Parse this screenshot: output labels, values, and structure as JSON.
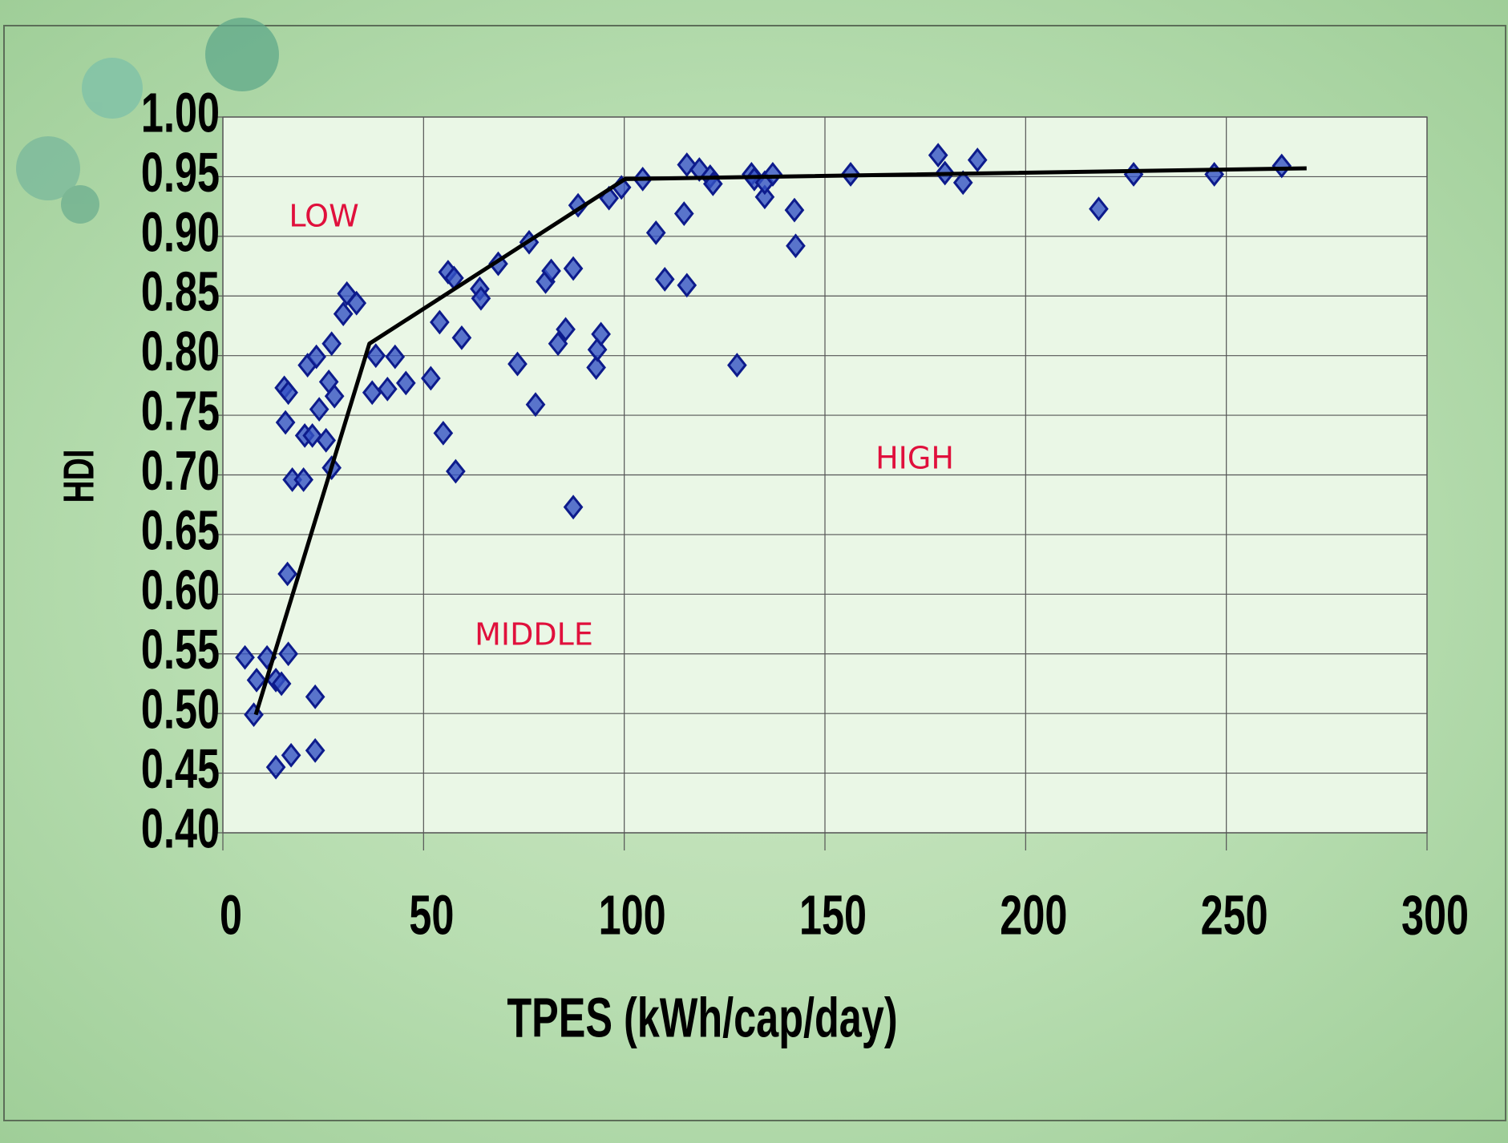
{
  "chart_data": {
    "type": "scatter",
    "x_label": "TPES (kWh/cap/day)",
    "y_label": "HDI",
    "annotations": [
      "LOW",
      "MIDDLE",
      "HIGH"
    ],
    "xlim": [
      0,
      300
    ],
    "xticks": [
      0,
      50,
      100,
      150,
      200,
      250,
      300
    ],
    "ylim": [
      0.4,
      1.0
    ],
    "yticks": [
      {
        "value": 0.4,
        "label": "0.40"
      },
      0.45,
      {
        "value": 0.5,
        "label": "0.50"
      },
      0.55,
      {
        "value": 0.6,
        "label": "0.60"
      },
      0.65,
      {
        "value": 0.7,
        "label": "0.70"
      },
      0.75,
      {
        "value": 0.8,
        "label": "0.80"
      },
      0.85,
      {
        "value": 0.9,
        "label": "0.90"
      },
      0.95,
      {
        "value": 1.0,
        "label": "1.00"
      }
    ],
    "grid": true,
    "series": [
      {
        "style": "diamond",
        "color": "#3553c4",
        "x": [
          5.5,
          8.4,
          7.7,
          11.0,
          13.2,
          14.6,
          13.2,
          17.0,
          23.0,
          23.0,
          16.3,
          16.1,
          15.6,
          15.3,
          16.3,
          17.3,
          20.1,
          20.4,
          22.3,
          25.7,
          27.1,
          24.0,
          27.8,
          26.4,
          21.1,
          23.3,
          27.1,
          30.0,
          30.9,
          33.3,
          37.2,
          38.1,
          41.0,
          42.9,
          45.6,
          51.8,
          54.0,
          54.9,
          58.0,
          56.1,
          57.6,
          59.5,
          64.0,
          64.3,
          68.6,
          73.4,
          76.3,
          77.9,
          80.4,
          81.8,
          83.5,
          85.4,
          87.3,
          87.3,
          88.5,
          93.0,
          93.3,
          94.2,
          96.2,
          99.3,
          104.6,
          107.9,
          110.1,
          114.9,
          115.6,
          115.6,
          118.7,
          121.4,
          122.1,
          128.1,
          131.7,
          132.4,
          135.0,
          135.0,
          137.0,
          142.4,
          142.7,
          156.4,
          178.2,
          179.9,
          184.4,
          188.0,
          218.2,
          226.9,
          247.0,
          263.8
        ],
        "values": [
          0.547,
          0.528,
          0.499,
          0.547,
          0.528,
          0.525,
          0.455,
          0.465,
          0.469,
          0.514,
          0.55,
          0.617,
          0.744,
          0.773,
          0.769,
          0.696,
          0.696,
          0.733,
          0.733,
          0.729,
          0.706,
          0.755,
          0.766,
          0.778,
          0.792,
          0.799,
          0.81,
          0.835,
          0.852,
          0.844,
          0.769,
          0.8,
          0.772,
          0.799,
          0.777,
          0.781,
          0.828,
          0.735,
          0.703,
          0.87,
          0.865,
          0.815,
          0.856,
          0.848,
          0.877,
          0.793,
          0.895,
          0.759,
          0.862,
          0.871,
          0.81,
          0.822,
          0.873,
          0.673,
          0.926,
          0.79,
          0.805,
          0.818,
          0.932,
          0.941,
          0.948,
          0.903,
          0.864,
          0.919,
          0.96,
          0.859,
          0.956,
          0.95,
          0.944,
          0.792,
          0.952,
          0.948,
          0.933,
          0.945,
          0.952,
          0.922,
          0.892,
          0.952,
          0.968,
          0.953,
          0.945,
          0.964,
          0.923,
          0.952,
          0.952,
          0.959
        ]
      },
      {
        "style": "line",
        "color": "#000000",
        "x": [
          8.2,
          36.5,
          100.2,
          270.0
        ],
        "values": [
          0.499,
          0.81,
          0.948,
          0.957
        ]
      }
    ]
  }
}
